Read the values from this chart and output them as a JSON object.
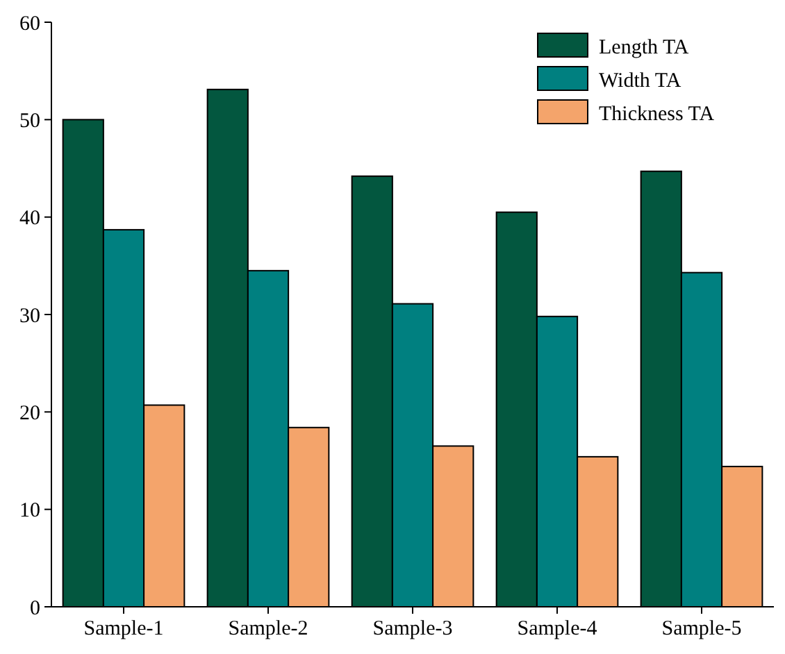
{
  "chart_data": {
    "type": "bar",
    "categories": [
      "Sample-1",
      "Sample-2",
      "Sample-3",
      "Sample-4",
      "Sample-5"
    ],
    "series": [
      {
        "name": "Length TA",
        "color": "#03573f",
        "values": [
          50.0,
          53.1,
          44.2,
          40.5,
          44.7
        ]
      },
      {
        "name": "Width TA",
        "color": "#008080",
        "values": [
          38.7,
          34.5,
          31.1,
          29.8,
          34.3
        ]
      },
      {
        "name": "Thickness TA",
        "color": "#f4a46b",
        "values": [
          20.7,
          18.4,
          16.5,
          15.4,
          14.4
        ]
      }
    ],
    "ylim": [
      0,
      60
    ],
    "yticks": [
      0,
      10,
      20,
      30,
      40,
      50,
      60
    ],
    "grid": false,
    "legend": "top right"
  }
}
